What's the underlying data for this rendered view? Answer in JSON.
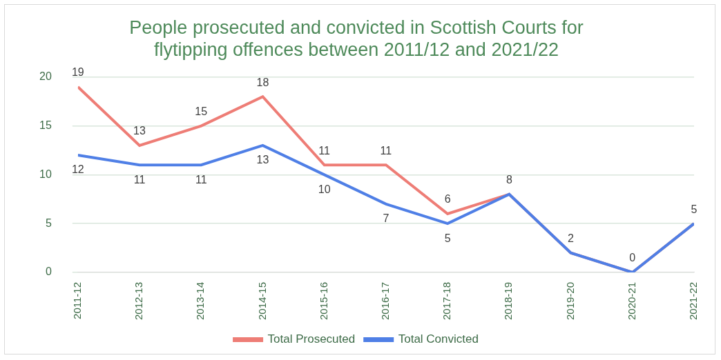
{
  "chart_data": {
    "type": "line",
    "title": "People prosecuted and convicted in Scottish Courts for flytipping offences between 2011/12 and 2021/22",
    "categories": [
      "2011-12",
      "2012-13",
      "2013-14",
      "2014-15",
      "2015-16",
      "2016-17",
      "2017-18",
      "2018-19",
      "2019-20",
      "2020-21",
      "2021-22"
    ],
    "series": [
      {
        "name": "Total Prosecuted",
        "color": "#ee7d76",
        "values": [
          19,
          13,
          15,
          18,
          11,
          11,
          6,
          8,
          2,
          0,
          5
        ]
      },
      {
        "name": "Total Convicted",
        "color": "#4f7fe6",
        "values": [
          12,
          11,
          11,
          13,
          10,
          7,
          5,
          8,
          2,
          0,
          5
        ]
      }
    ],
    "ylim": [
      0,
      20
    ],
    "yticks": [
      0,
      5,
      10,
      15,
      20
    ],
    "grid": true,
    "legend": "bottom",
    "data_labels": true
  }
}
